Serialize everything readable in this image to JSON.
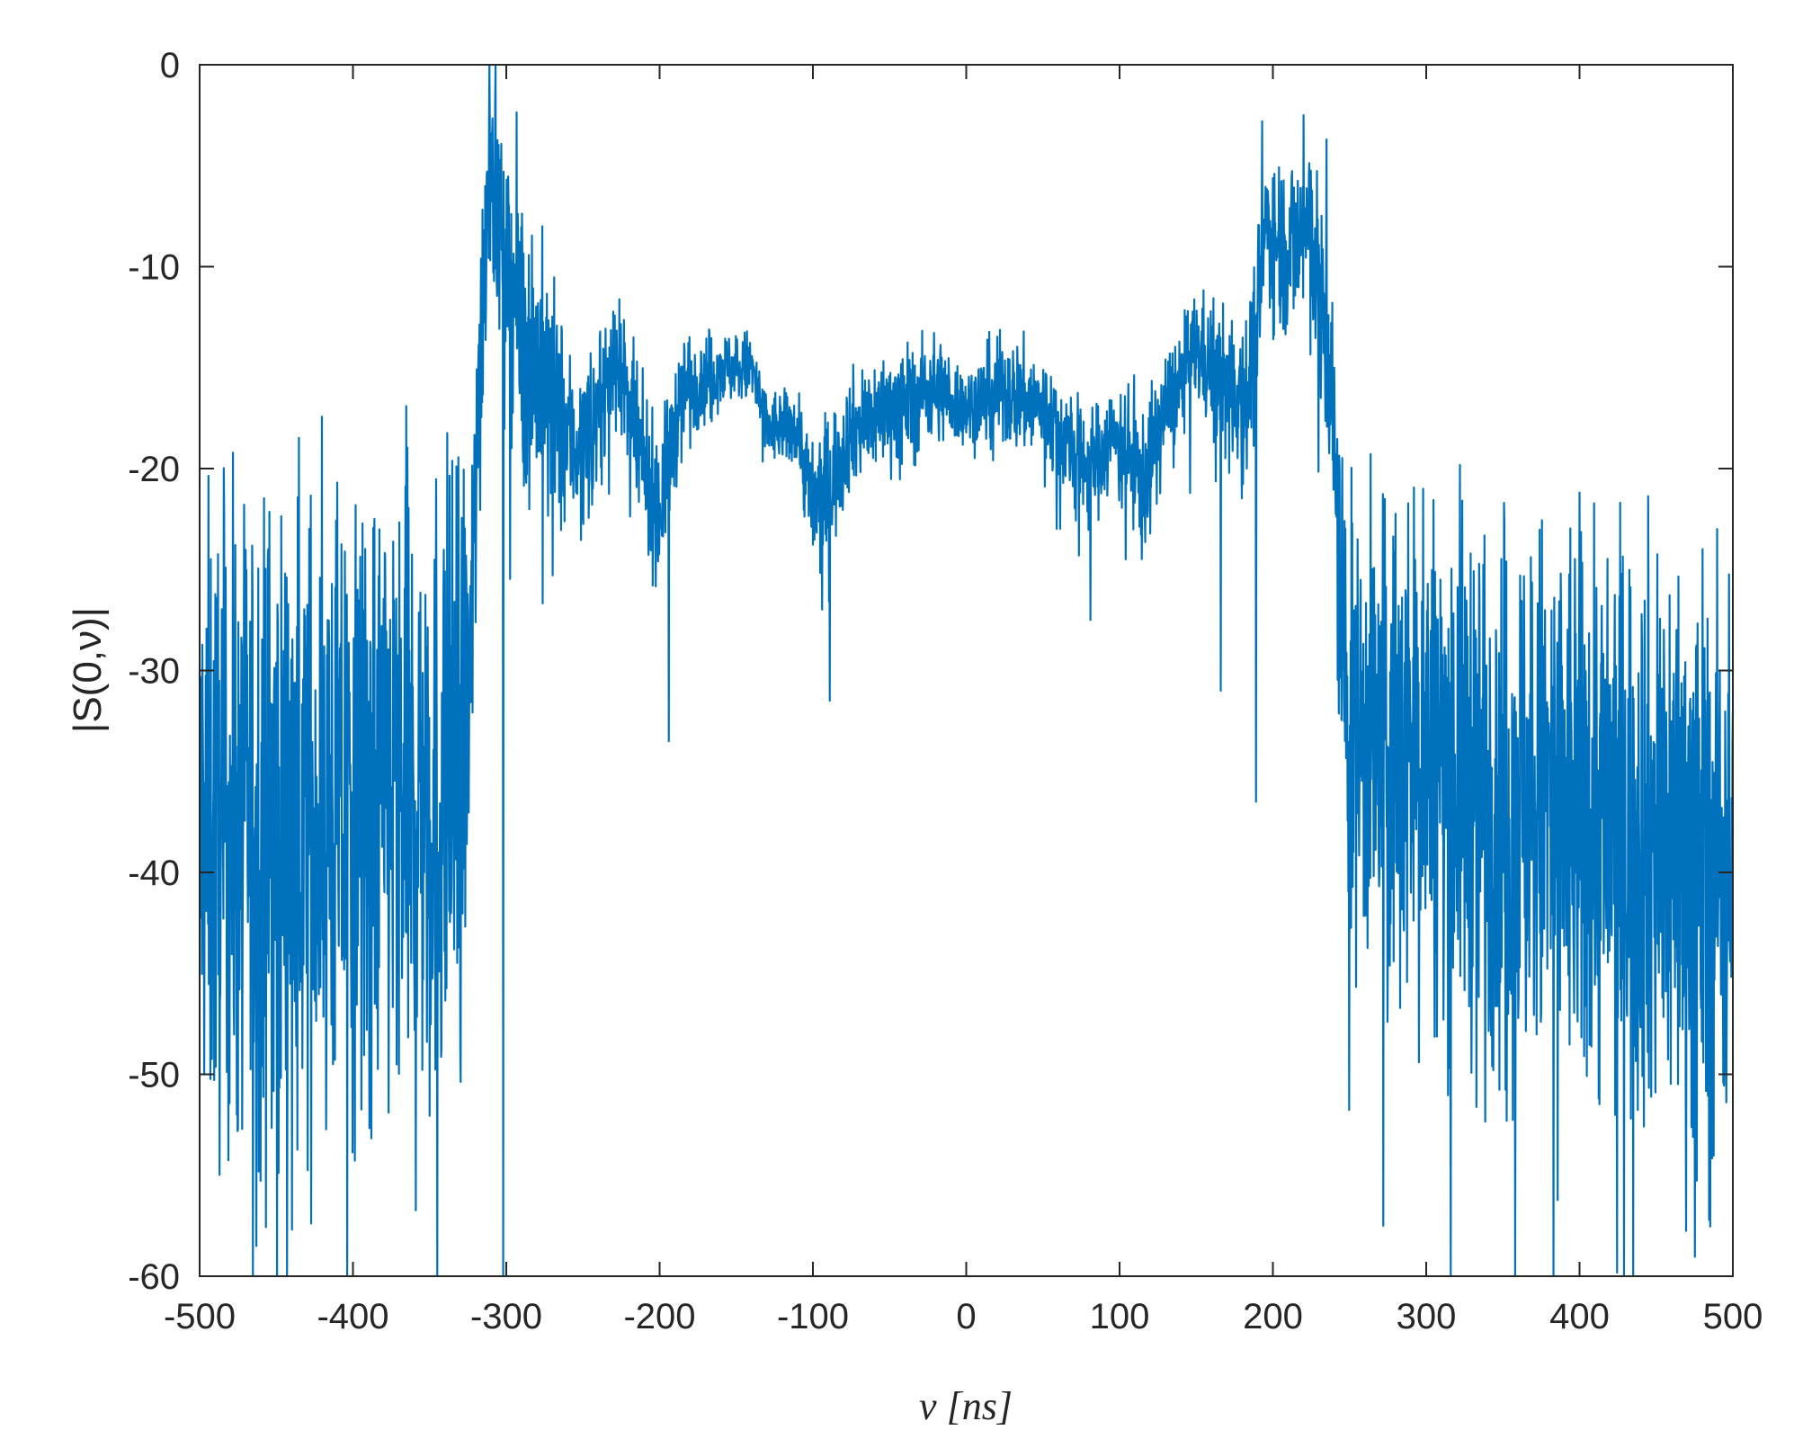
{
  "chart_data": {
    "type": "line",
    "title": "",
    "xlabel": "ν [ns]",
    "ylabel": "|S(0,ν)|",
    "xlim": [
      -500,
      500
    ],
    "ylim": [
      -60,
      0
    ],
    "grid": false,
    "legend": "none",
    "box": true,
    "line_color": "#0072BD",
    "x_ticks": [
      -500,
      -400,
      -300,
      -200,
      -100,
      0,
      100,
      200,
      300,
      400,
      500
    ],
    "y_ticks": [
      -60,
      -50,
      -40,
      -30,
      -20,
      -10,
      0
    ],
    "x_tick_labels": [
      "-500",
      "-400",
      "-300",
      "-200",
      "-100",
      "0",
      "100",
      "200",
      "300",
      "400",
      "500"
    ],
    "y_tick_labels": [
      "-60",
      "-50",
      "-40",
      "-30",
      "-20",
      "-10",
      "0"
    ],
    "series": [
      {
        "sample_step_ns": 0.25,
        "envelope": [
          {
            "x": -500,
            "y": -38,
            "spread": 17
          },
          {
            "x": -400,
            "y": -37,
            "spread": 17
          },
          {
            "x": -330,
            "y": -35,
            "spread": 17
          },
          {
            "x": -323,
            "y": -30,
            "spread": 10
          },
          {
            "x": -318,
            "y": -16,
            "spread": 9
          },
          {
            "x": -311,
            "y": -4,
            "spread": 6
          },
          {
            "x": -300,
            "y": -10,
            "spread": 7
          },
          {
            "x": -285,
            "y": -14,
            "spread": 8
          },
          {
            "x": -270,
            "y": -17,
            "spread": 7
          },
          {
            "x": -255,
            "y": -19,
            "spread": 4
          },
          {
            "x": -240,
            "y": -17,
            "spread": 4
          },
          {
            "x": -228,
            "y": -14,
            "spread": 3
          },
          {
            "x": -215,
            "y": -19,
            "spread": 4
          },
          {
            "x": -200,
            "y": -22,
            "spread": 4
          },
          {
            "x": -185,
            "y": -16,
            "spread": 3
          },
          {
            "x": -160,
            "y": -15,
            "spread": 2
          },
          {
            "x": -140,
            "y": -15,
            "spread": 2
          },
          {
            "x": -130,
            "y": -18,
            "spread": 2
          },
          {
            "x": -110,
            "y": -18,
            "spread": 2
          },
          {
            "x": -100,
            "y": -22,
            "spread": 4
          },
          {
            "x": -90,
            "y": -21,
            "spread": 4
          },
          {
            "x": -75,
            "y": -18,
            "spread": 3
          },
          {
            "x": -50,
            "y": -17,
            "spread": 3
          },
          {
            "x": -20,
            "y": -16,
            "spread": 3
          },
          {
            "x": 0,
            "y": -17,
            "spread": 2
          },
          {
            "x": 20,
            "y": -16,
            "spread": 3
          },
          {
            "x": 50,
            "y": -17,
            "spread": 3
          },
          {
            "x": 80,
            "y": -20,
            "spread": 3
          },
          {
            "x": 100,
            "y": -18,
            "spread": 3
          },
          {
            "x": 115,
            "y": -21,
            "spread": 4
          },
          {
            "x": 130,
            "y": -17,
            "spread": 3
          },
          {
            "x": 150,
            "y": -14,
            "spread": 3
          },
          {
            "x": 170,
            "y": -16,
            "spread": 4
          },
          {
            "x": 185,
            "y": -16,
            "spread": 5
          },
          {
            "x": 195,
            "y": -8,
            "spread": 4
          },
          {
            "x": 210,
            "y": -9,
            "spread": 5
          },
          {
            "x": 225,
            "y": -8,
            "spread": 5
          },
          {
            "x": 238,
            "y": -16,
            "spread": 7
          },
          {
            "x": 243,
            "y": -25,
            "spread": 9
          },
          {
            "x": 250,
            "y": -33,
            "spread": 12
          },
          {
            "x": 300,
            "y": -34,
            "spread": 14
          },
          {
            "x": 350,
            "y": -36,
            "spread": 15
          },
          {
            "x": 400,
            "y": -37,
            "spread": 16
          },
          {
            "x": 450,
            "y": -38,
            "spread": 16
          },
          {
            "x": 500,
            "y": -40,
            "spread": 16
          }
        ],
        "peaks": [
          {
            "x": -311,
            "y": 0
          },
          {
            "x": -397,
            "y": -26
          },
          {
            "x": -194,
            "y": -33.5
          },
          {
            "x": -89,
            "y": -31.5
          },
          {
            "x": 81,
            "y": -27.5
          },
          {
            "x": 166,
            "y": -31
          },
          {
            "x": 189,
            "y": -36.5
          },
          {
            "x": 193,
            "y": -2.8
          },
          {
            "x": 220,
            "y": -2.5
          },
          {
            "x": 235,
            "y": -3.7
          },
          {
            "x": 298,
            "y": -21
          },
          {
            "x": -302,
            "y": -60
          },
          {
            "x": -345,
            "y": -60
          },
          {
            "x": 358,
            "y": -60
          },
          {
            "x": 383,
            "y": -60
          },
          {
            "x": 435,
            "y": -60
          },
          {
            "x": 272,
            "y": -57.5
          },
          {
            "x": -463,
            "y": -58.5
          }
        ]
      }
    ]
  }
}
